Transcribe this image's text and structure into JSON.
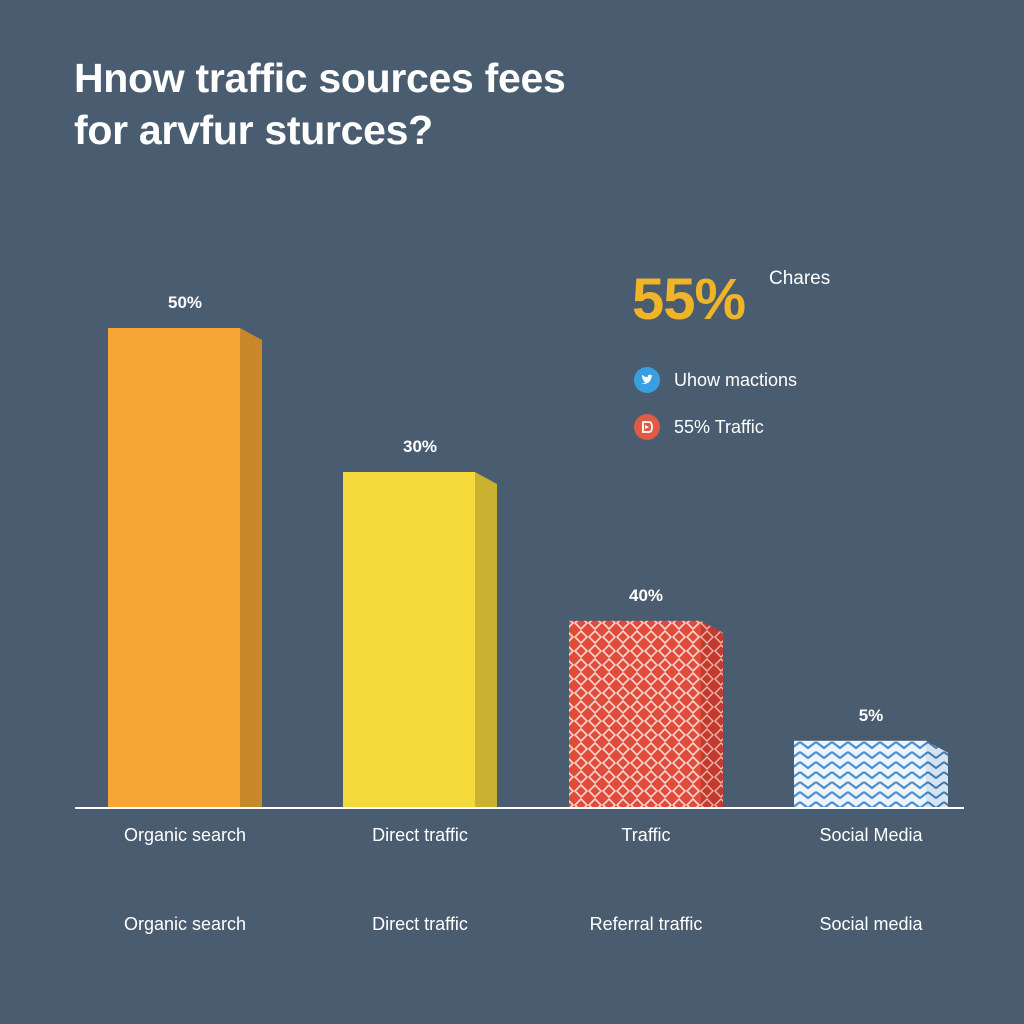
{
  "chart_data": {
    "type": "bar",
    "title_lines": [
      "Hnow traffic sources fees",
      "for arvfur sturces?"
    ],
    "categories": [
      "Organic search",
      "Direct traffic",
      "Traffic",
      "Social Media"
    ],
    "secondary_labels": [
      "Organic search",
      "Direct traffic",
      "Referral traffic",
      "Social media"
    ],
    "values": [
      50,
      30,
      40,
      5
    ],
    "value_labels": [
      "50%",
      "30%",
      "40%",
      "5%"
    ],
    "bar_heights_pct": [
      50,
      35,
      19.5,
      7
    ],
    "bar_colors": [
      "#f5a534",
      "#f5d93a",
      "#e04b3c",
      "#4a90d0"
    ],
    "bar_patterns": [
      "solid",
      "solid",
      "diamond",
      "chevron"
    ],
    "ylim": [
      0,
      100
    ],
    "grid": false,
    "legend_position": "right"
  },
  "callout": {
    "big_value": "55%",
    "note": "Chares",
    "color": "#f0b429"
  },
  "legend": {
    "items": [
      {
        "label": "Uhow mactions",
        "icon": "twitter-bird-icon",
        "color": "#3a9fe0"
      },
      {
        "label": "55% Traffic",
        "icon": "social-badge-icon",
        "color": "#e05b43"
      }
    ]
  }
}
